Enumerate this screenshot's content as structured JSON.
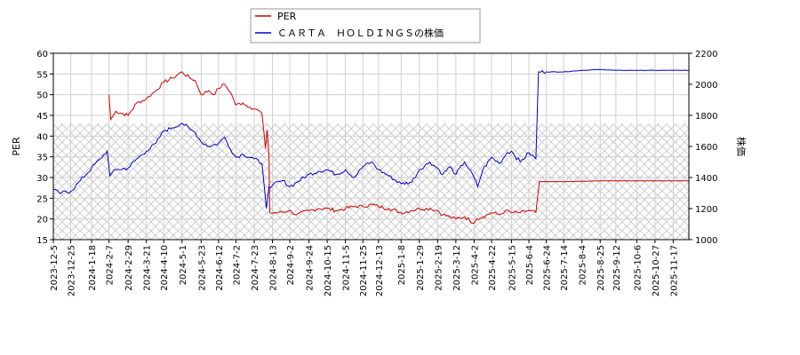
{
  "chart_data": {
    "type": "line",
    "ylabel_left": "PER",
    "ylabel_right": "株価",
    "y_left_range": [
      15,
      60
    ],
    "y_left_ticks": [
      "15",
      "20",
      "25",
      "30",
      "35",
      "40",
      "45",
      "50",
      "55",
      "60"
    ],
    "y_right_range": [
      1000,
      2200
    ],
    "y_right_ticks": [
      "1000",
      "1200",
      "1400",
      "1600",
      "1800",
      "2000",
      "2200"
    ],
    "x_range": [
      "2023-12-05",
      "2025-12-05"
    ],
    "x_tick_labels": [
      "2023-12-5",
      "2023-12-25",
      "2024-1-18",
      "2024-2-7",
      "2024-2-29",
      "2024-3-21",
      "2024-4-10",
      "2024-5-1",
      "2024-5-23",
      "2024-6-12",
      "2024-7-2",
      "2024-7-23",
      "2024-8-13",
      "2024-9-2",
      "2024-9-24",
      "2024-10-15",
      "2024-11-5",
      "2024-11-25",
      "2024-12-13",
      "2025-1-8",
      "2025-1-29",
      "2025-2-19",
      "2025-3-12",
      "2025-4-2",
      "2025-4-22",
      "2025-5-15",
      "2025-6-4",
      "2025-6-24",
      "2025-7-14",
      "2025-8-4",
      "2025-8-25",
      "2025-9-12",
      "2025-10-6",
      "2025-10-27",
      "2025-11-17"
    ],
    "grid": true,
    "legend_position": "top-center",
    "hatched_band_left_range": [
      15,
      43
    ],
    "series": [
      {
        "name": "PER",
        "color": "#cc0000",
        "axis": "left",
        "points": [
          [
            "2024-02-07",
            50
          ],
          [
            "2024-02-09",
            44
          ],
          [
            "2024-02-15",
            46
          ],
          [
            "2024-02-29",
            45
          ],
          [
            "2024-03-10",
            48
          ],
          [
            "2024-03-21",
            49
          ],
          [
            "2024-04-01",
            51
          ],
          [
            "2024-04-10",
            53
          ],
          [
            "2024-04-20",
            54
          ],
          [
            "2024-05-01",
            55.5
          ],
          [
            "2024-05-10",
            54
          ],
          [
            "2024-05-16",
            53.5
          ],
          [
            "2024-05-23",
            50
          ],
          [
            "2024-06-01",
            51
          ],
          [
            "2024-06-06",
            50
          ],
          [
            "2024-06-12",
            51.5
          ],
          [
            "2024-06-19",
            52.5
          ],
          [
            "2024-06-26",
            50.5
          ],
          [
            "2024-07-02",
            47.5
          ],
          [
            "2024-07-10",
            48
          ],
          [
            "2024-07-18",
            47
          ],
          [
            "2024-07-25",
            46.5
          ],
          [
            "2024-08-01",
            45.5
          ],
          [
            "2024-08-05",
            37
          ],
          [
            "2024-08-07",
            41.5
          ],
          [
            "2024-08-09",
            35
          ],
          [
            "2024-08-10",
            21.5
          ],
          [
            "2024-08-20",
            21.5
          ],
          [
            "2024-09-01",
            22
          ],
          [
            "2024-09-10",
            21
          ],
          [
            "2024-09-24",
            22
          ],
          [
            "2024-10-05",
            22.5
          ],
          [
            "2024-10-15",
            22.5
          ],
          [
            "2024-10-25",
            22
          ],
          [
            "2024-11-05",
            22.5
          ],
          [
            "2024-11-15",
            23
          ],
          [
            "2024-11-25",
            23
          ],
          [
            "2024-12-05",
            23.5
          ],
          [
            "2024-12-13",
            23
          ],
          [
            "2024-12-25",
            22.5
          ],
          [
            "2025-01-08",
            21.5
          ],
          [
            "2025-01-20",
            22
          ],
          [
            "2025-01-29",
            22.5
          ],
          [
            "2025-02-10",
            22.5
          ],
          [
            "2025-02-19",
            22
          ],
          [
            "2025-02-25",
            21
          ],
          [
            "2025-03-05",
            20.5
          ],
          [
            "2025-03-12",
            20
          ],
          [
            "2025-03-22",
            20.5
          ],
          [
            "2025-04-02",
            19
          ],
          [
            "2025-04-05",
            20
          ],
          [
            "2025-04-12",
            20.5
          ],
          [
            "2025-04-22",
            21.5
          ],
          [
            "2025-05-01",
            21
          ],
          [
            "2025-05-08",
            22
          ],
          [
            "2025-05-15",
            21.5
          ],
          [
            "2025-05-25",
            21.5
          ],
          [
            "2025-06-04",
            22
          ],
          [
            "2025-06-12",
            21.5
          ],
          [
            "2025-06-16",
            29
          ],
          [
            "2025-06-24",
            29
          ],
          [
            "2025-07-14",
            29
          ],
          [
            "2025-08-04",
            29.1
          ],
          [
            "2025-08-25",
            29.2
          ],
          [
            "2025-09-12",
            29.2
          ],
          [
            "2025-10-06",
            29.2
          ],
          [
            "2025-10-27",
            29.2
          ],
          [
            "2025-11-17",
            29.2
          ],
          [
            "2025-12-05",
            29.2
          ]
        ]
      },
      {
        "name": "ＣＡＲＴＡ　ＨＯＬＤＩＮＧＳの株価",
        "color": "#0000cc",
        "axis": "right",
        "points": [
          [
            "2023-12-05",
            1320
          ],
          [
            "2023-12-12",
            1300
          ],
          [
            "2023-12-25",
            1310
          ],
          [
            "2024-01-05",
            1380
          ],
          [
            "2024-01-18",
            1460
          ],
          [
            "2024-01-28",
            1520
          ],
          [
            "2024-02-05",
            1570
          ],
          [
            "2024-02-08",
            1410
          ],
          [
            "2024-02-15",
            1450
          ],
          [
            "2024-02-29",
            1460
          ],
          [
            "2024-03-10",
            1520
          ],
          [
            "2024-03-21",
            1570
          ],
          [
            "2024-04-01",
            1620
          ],
          [
            "2024-04-10",
            1700
          ],
          [
            "2024-04-20",
            1720
          ],
          [
            "2024-05-01",
            1750
          ],
          [
            "2024-05-10",
            1710
          ],
          [
            "2024-05-16",
            1690
          ],
          [
            "2024-05-23",
            1630
          ],
          [
            "2024-06-01",
            1600
          ],
          [
            "2024-06-12",
            1620
          ],
          [
            "2024-06-19",
            1660
          ],
          [
            "2024-06-26",
            1580
          ],
          [
            "2024-07-02",
            1530
          ],
          [
            "2024-07-10",
            1550
          ],
          [
            "2024-07-23",
            1520
          ],
          [
            "2024-08-01",
            1490
          ],
          [
            "2024-08-04",
            1320
          ],
          [
            "2024-08-06",
            1200
          ],
          [
            "2024-08-09",
            1340
          ],
          [
            "2024-08-13",
            1350
          ],
          [
            "2024-08-25",
            1380
          ],
          [
            "2024-09-02",
            1340
          ],
          [
            "2024-09-10",
            1370
          ],
          [
            "2024-09-24",
            1420
          ],
          [
            "2024-10-05",
            1440
          ],
          [
            "2024-10-15",
            1450
          ],
          [
            "2024-10-25",
            1420
          ],
          [
            "2024-11-05",
            1450
          ],
          [
            "2024-11-15",
            1400
          ],
          [
            "2024-11-25",
            1470
          ],
          [
            "2024-12-05",
            1500
          ],
          [
            "2024-12-13",
            1450
          ],
          [
            "2024-12-25",
            1410
          ],
          [
            "2025-01-08",
            1360
          ],
          [
            "2025-01-20",
            1370
          ],
          [
            "2025-01-29",
            1450
          ],
          [
            "2025-02-10",
            1500
          ],
          [
            "2025-02-19",
            1460
          ],
          [
            "2025-02-25",
            1420
          ],
          [
            "2025-03-05",
            1470
          ],
          [
            "2025-03-12",
            1420
          ],
          [
            "2025-03-22",
            1500
          ],
          [
            "2025-04-02",
            1400
          ],
          [
            "2025-04-06",
            1340
          ],
          [
            "2025-04-12",
            1450
          ],
          [
            "2025-04-22",
            1530
          ],
          [
            "2025-05-01",
            1490
          ],
          [
            "2025-05-10",
            1560
          ],
          [
            "2025-05-15",
            1570
          ],
          [
            "2025-05-25",
            1500
          ],
          [
            "2025-06-04",
            1560
          ],
          [
            "2025-06-12",
            1520
          ],
          [
            "2025-06-15",
            2080
          ],
          [
            "2025-06-24",
            2080
          ],
          [
            "2025-07-14",
            2080
          ],
          [
            "2025-08-04",
            2090
          ],
          [
            "2025-08-25",
            2095
          ],
          [
            "2025-09-12",
            2090
          ],
          [
            "2025-10-06",
            2090
          ],
          [
            "2025-10-27",
            2090
          ],
          [
            "2025-11-17",
            2090
          ],
          [
            "2025-12-05",
            2090
          ]
        ]
      }
    ]
  }
}
